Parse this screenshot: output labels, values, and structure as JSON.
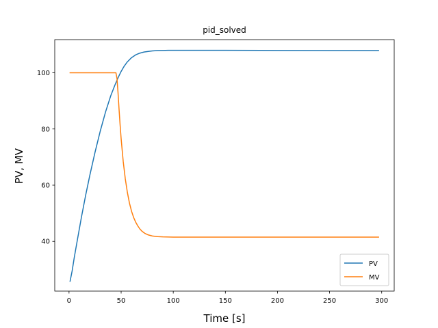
{
  "chart_data": {
    "type": "line",
    "title": "pid_solved",
    "xlabel": "Time [s]",
    "ylabel": "PV, MV",
    "xlim": [
      -13.7,
      312
    ],
    "ylim": [
      22.3,
      111.8
    ],
    "xticks": [
      0,
      50,
      100,
      150,
      200,
      250,
      300
    ],
    "yticks": [
      40,
      60,
      80,
      100
    ],
    "grid": false,
    "legend_position": "lower-right",
    "series": [
      {
        "name": "PV",
        "color": "#1f77b4",
        "x": [
          1,
          3,
          5,
          8,
          12,
          16,
          20,
          25,
          30,
          35,
          40,
          44,
          47,
          50,
          53,
          56,
          60,
          64,
          68,
          72,
          76,
          80,
          85,
          90,
          95,
          100,
          110,
          120,
          150,
          200,
          250,
          297
        ],
        "y": [
          25.8,
          29.5,
          34.2,
          40.5,
          48.8,
          56.5,
          63.6,
          71.8,
          79.3,
          86.0,
          91.8,
          95.6,
          98.2,
          100.5,
          102.4,
          103.9,
          105.4,
          106.4,
          107.0,
          107.4,
          107.6,
          107.8,
          107.9,
          107.95,
          108.0,
          108.0,
          108.0,
          108.0,
          108.0,
          107.95,
          107.9,
          107.9
        ]
      },
      {
        "name": "MV",
        "color": "#ff7f0e",
        "x": [
          1,
          10,
          20,
          30,
          40,
          45,
          46,
          47,
          48,
          49,
          50,
          52,
          54,
          56,
          58,
          60,
          62,
          64,
          66,
          68,
          70,
          73,
          76,
          80,
          85,
          90,
          100,
          120,
          150,
          200,
          250,
          297
        ],
        "y": [
          100.0,
          100.0,
          100.0,
          100.0,
          100.0,
          100.0,
          98.0,
          93.0,
          87.0,
          81.5,
          76.5,
          68.4,
          62.2,
          57.4,
          53.6,
          50.7,
          48.5,
          46.8,
          45.5,
          44.4,
          43.6,
          42.8,
          42.3,
          41.9,
          41.7,
          41.6,
          41.5,
          41.5,
          41.5,
          41.5,
          41.5,
          41.5
        ]
      }
    ]
  }
}
